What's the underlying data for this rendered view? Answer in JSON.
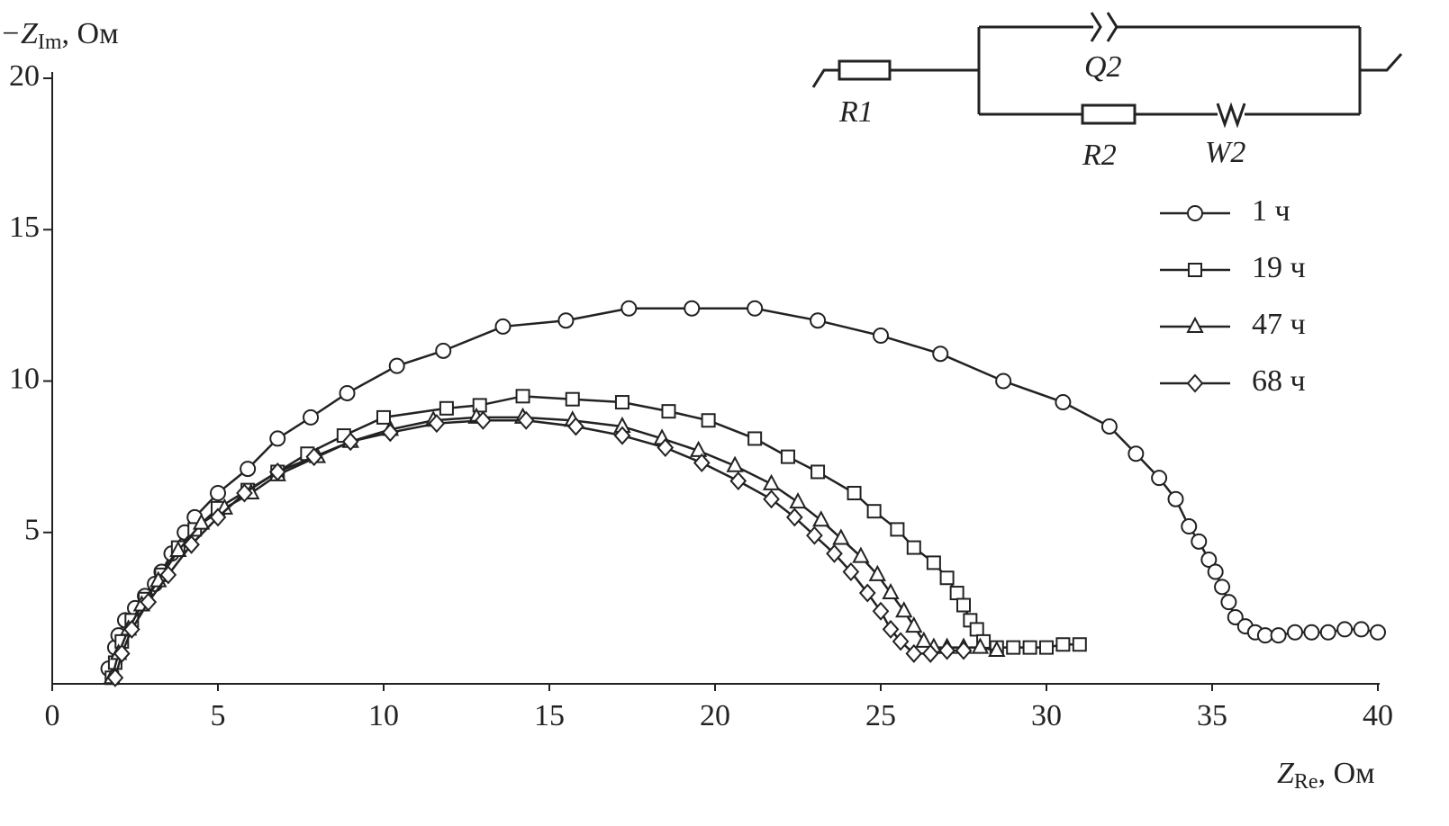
{
  "chart_data": {
    "type": "line",
    "ylabel_parts": [
      "−Z",
      "Im",
      ", Ом"
    ],
    "xlabel_parts": [
      "Z",
      "Re",
      ", Ом"
    ],
    "xlim": [
      0,
      40
    ],
    "xticks": [
      0,
      5,
      10,
      15,
      20,
      25,
      30,
      35,
      40
    ],
    "ylim": [
      0,
      20
    ],
    "yticks": [
      5,
      10,
      15,
      20
    ],
    "circuit_labels": [
      "R1",
      "Q2",
      "R2",
      "W2"
    ],
    "series": [
      {
        "name": "1 ч",
        "color": "#222222",
        "marker": "circle",
        "x": [
          1.7,
          1.9,
          2.0,
          2.2,
          2.5,
          2.8,
          3.1,
          3.3,
          3.6,
          4.0,
          4.3,
          5.0,
          5.9,
          6.8,
          7.8,
          8.9,
          10.4,
          11.8,
          13.6,
          15.5,
          17.4,
          19.3,
          21.2,
          23.1,
          25.0,
          26.8,
          28.7,
          30.5,
          31.9,
          32.7,
          33.4,
          33.9,
          34.3,
          34.6,
          34.9,
          35.1,
          35.3,
          35.5,
          35.7,
          36.0,
          36.3,
          36.6,
          37.0,
          37.5,
          38.0,
          38.5,
          39.0,
          39.5,
          40.0
        ],
        "values": [
          0.5,
          1.2,
          1.6,
          2.1,
          2.5,
          2.9,
          3.3,
          3.7,
          4.3,
          5.0,
          5.5,
          6.3,
          7.1,
          8.1,
          8.8,
          9.6,
          10.5,
          11.0,
          11.8,
          12.0,
          12.4,
          12.4,
          12.4,
          12.0,
          11.5,
          10.9,
          10.0,
          9.3,
          8.5,
          7.6,
          6.8,
          6.1,
          5.2,
          4.7,
          4.1,
          3.7,
          3.2,
          2.7,
          2.2,
          1.9,
          1.7,
          1.6,
          1.6,
          1.7,
          1.7,
          1.7,
          1.8,
          1.8,
          1.7
        ]
      },
      {
        "name": "19 ч",
        "color": "#222222",
        "marker": "square",
        "x": [
          1.8,
          1.9,
          2.1,
          2.4,
          2.8,
          3.3,
          3.8,
          4.3,
          5.0,
          5.9,
          6.8,
          7.7,
          8.8,
          10.0,
          11.9,
          12.9,
          14.2,
          15.7,
          17.2,
          18.6,
          19.8,
          21.2,
          22.2,
          23.1,
          24.2,
          24.8,
          25.5,
          26.0,
          26.6,
          27.0,
          27.3,
          27.5,
          27.7,
          27.9,
          28.1,
          28.5,
          29.0,
          29.5,
          30.0,
          30.5,
          31.0
        ],
        "values": [
          0.2,
          0.7,
          1.4,
          2.1,
          2.8,
          3.6,
          4.5,
          5.1,
          5.8,
          6.4,
          7.0,
          7.6,
          8.2,
          8.8,
          9.1,
          9.2,
          9.5,
          9.4,
          9.3,
          9.0,
          8.7,
          8.1,
          7.5,
          7.0,
          6.3,
          5.7,
          5.1,
          4.5,
          4.0,
          3.5,
          3.0,
          2.6,
          2.1,
          1.8,
          1.4,
          1.2,
          1.2,
          1.2,
          1.2,
          1.3,
          1.3
        ]
      },
      {
        "name": "47 ч",
        "color": "#222222",
        "marker": "triangle",
        "x": [
          1.8,
          2.0,
          2.3,
          2.7,
          3.2,
          3.8,
          4.5,
          5.2,
          6.0,
          6.8,
          8.0,
          9.0,
          10.2,
          11.5,
          12.8,
          14.2,
          15.7,
          17.2,
          18.4,
          19.5,
          20.6,
          21.7,
          22.5,
          23.2,
          23.8,
          24.4,
          24.9,
          25.3,
          25.7,
          26.0,
          26.3,
          26.6,
          27.0,
          27.5,
          28.0,
          28.5
        ],
        "values": [
          0.2,
          1.0,
          1.8,
          2.6,
          3.4,
          4.4,
          5.3,
          5.8,
          6.3,
          6.9,
          7.5,
          8.0,
          8.4,
          8.7,
          8.8,
          8.8,
          8.7,
          8.5,
          8.1,
          7.7,
          7.2,
          6.6,
          6.0,
          5.4,
          4.8,
          4.2,
          3.6,
          3.0,
          2.4,
          1.9,
          1.4,
          1.2,
          1.2,
          1.2,
          1.2,
          1.1
        ]
      },
      {
        "name": "68 ч",
        "color": "#222222",
        "marker": "diamond",
        "x": [
          1.9,
          2.1,
          2.4,
          2.9,
          3.5,
          4.2,
          5.0,
          5.8,
          6.8,
          7.9,
          9.0,
          10.2,
          11.6,
          13.0,
          14.3,
          15.8,
          17.2,
          18.5,
          19.6,
          20.7,
          21.7,
          22.4,
          23.0,
          23.6,
          24.1,
          24.6,
          25.0,
          25.3,
          25.6,
          26.0,
          26.5,
          27.0,
          27.5
        ],
        "values": [
          0.2,
          1.0,
          1.8,
          2.7,
          3.6,
          4.6,
          5.5,
          6.3,
          7.0,
          7.5,
          8.0,
          8.3,
          8.6,
          8.7,
          8.7,
          8.5,
          8.2,
          7.8,
          7.3,
          6.7,
          6.1,
          5.5,
          4.9,
          4.3,
          3.7,
          3.0,
          2.4,
          1.8,
          1.4,
          1.0,
          1.0,
          1.1,
          1.1
        ]
      }
    ]
  }
}
